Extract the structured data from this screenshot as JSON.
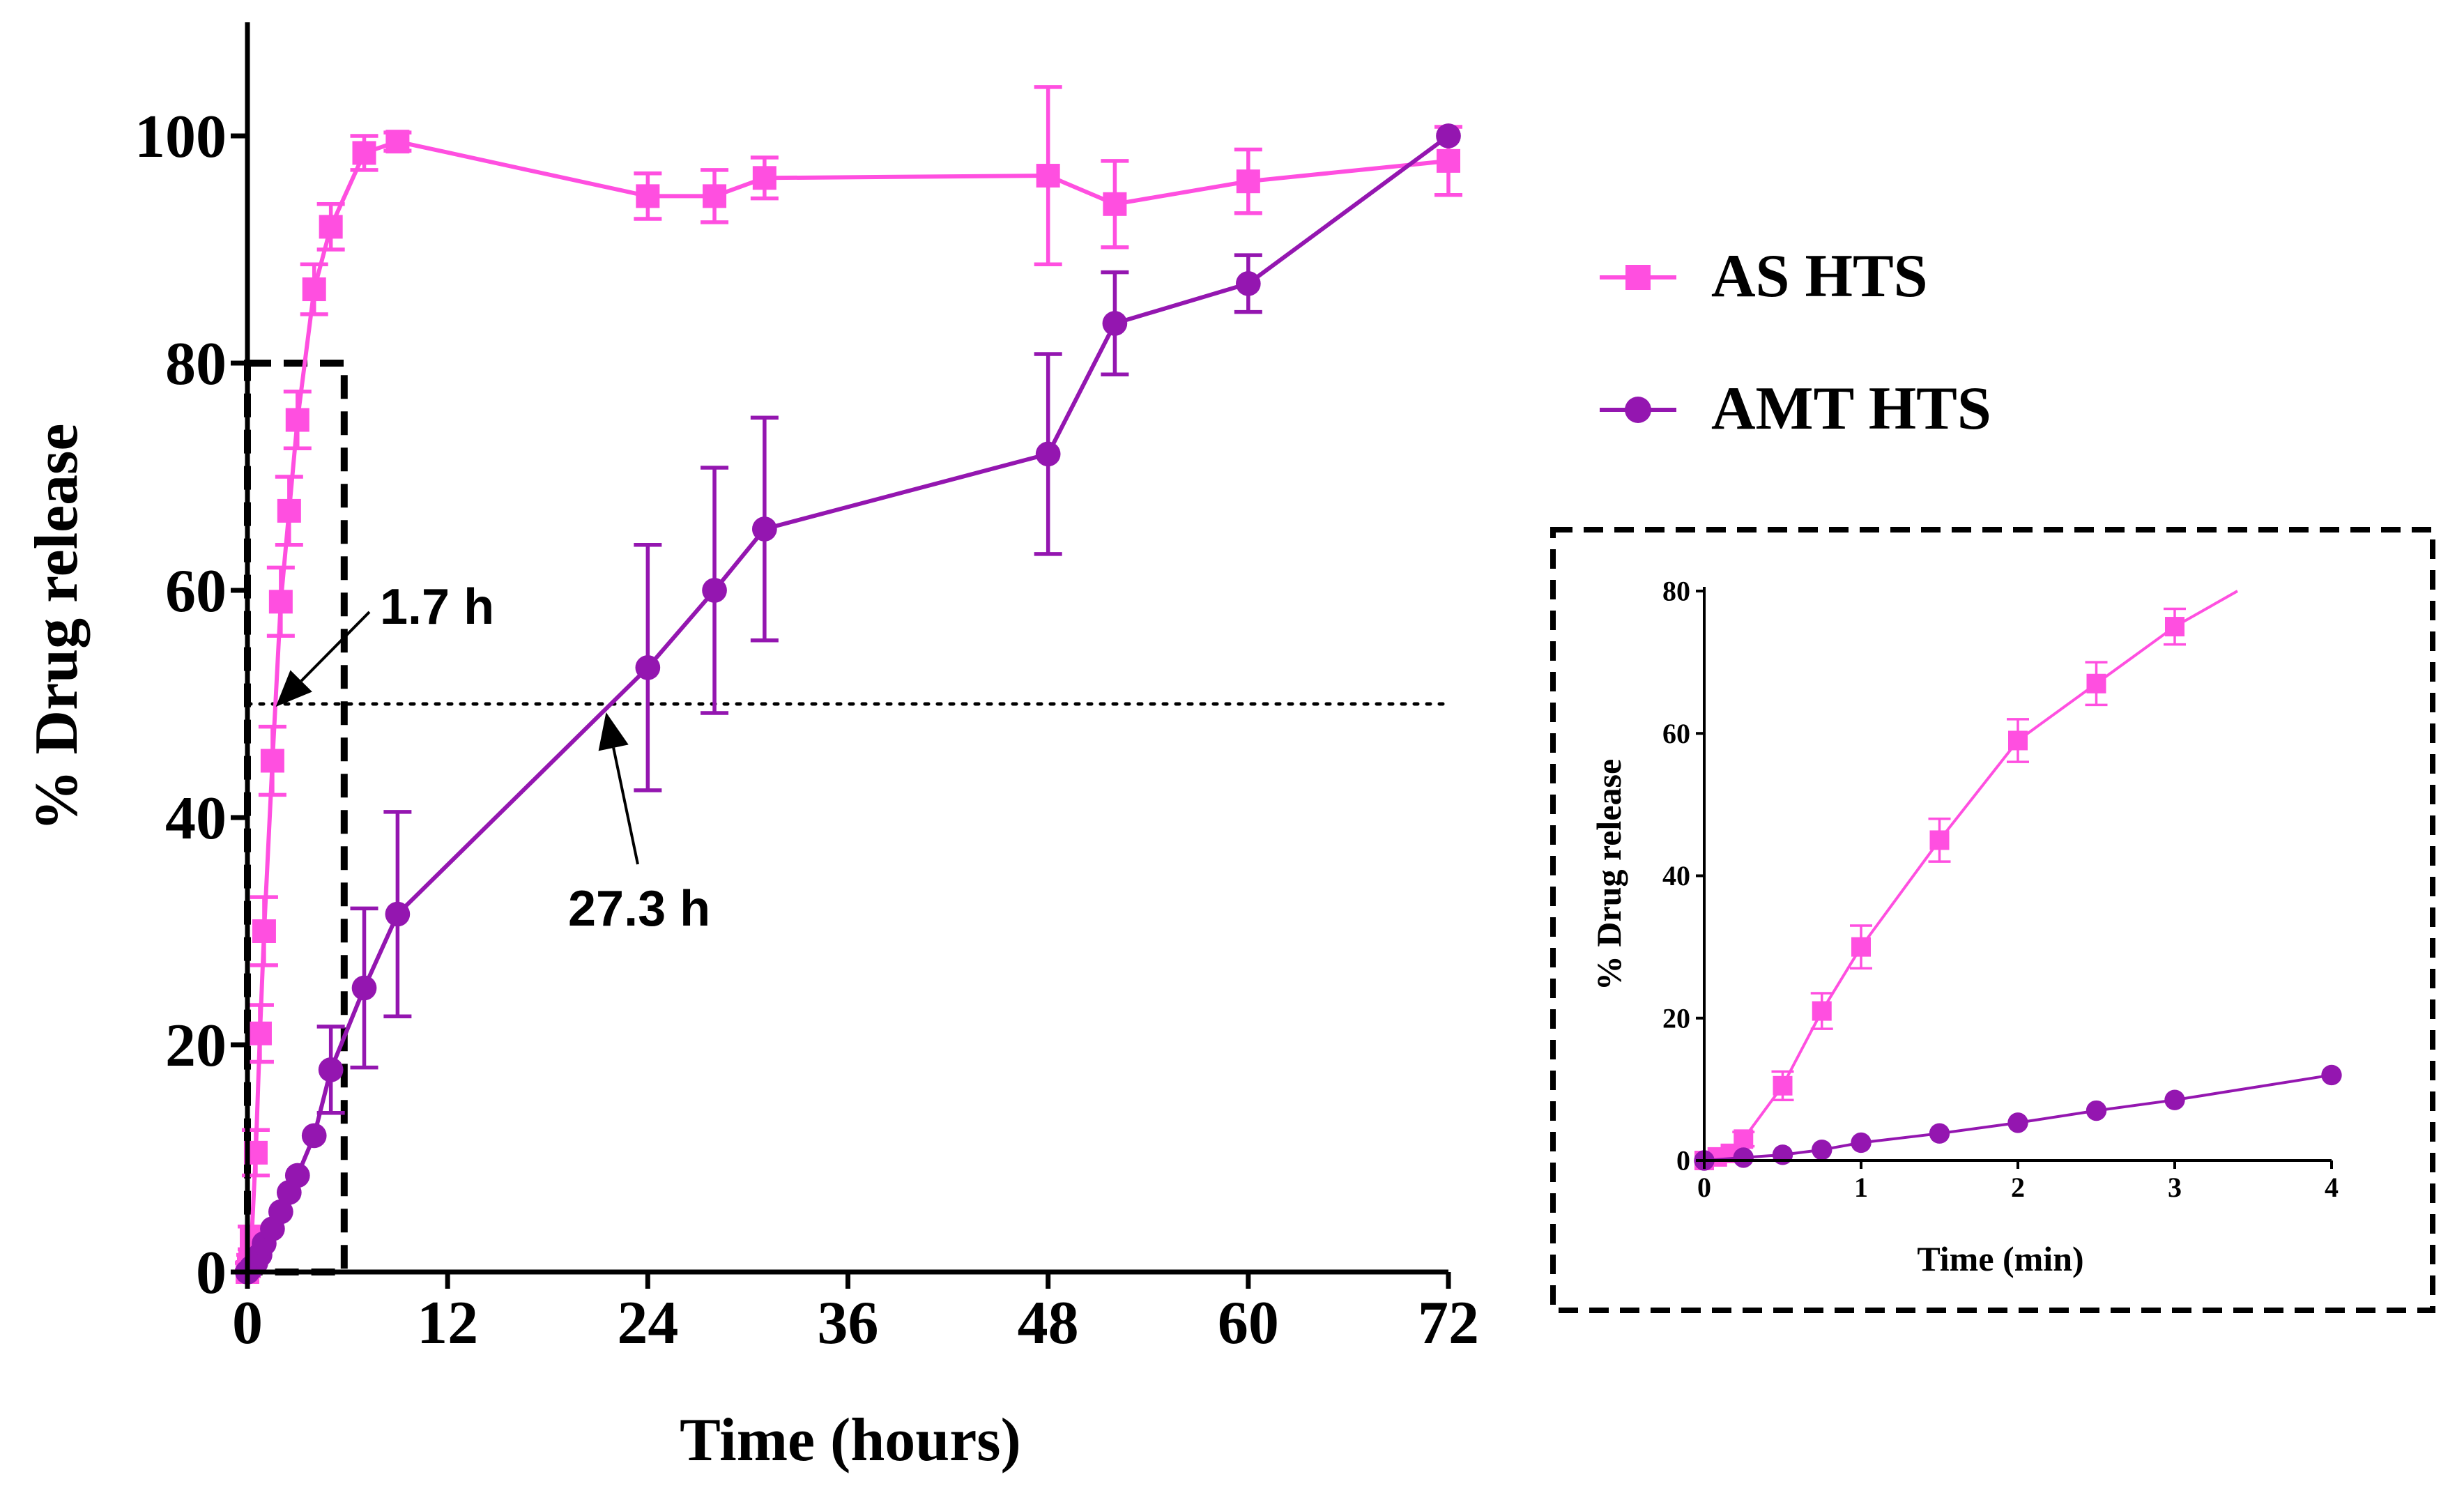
{
  "chart_data": [
    {
      "id": "main",
      "type": "line",
      "xlabel": "Time (hours)",
      "ylabel": "% Drug release",
      "xlim": [
        0,
        72
      ],
      "ylim": [
        0,
        110
      ],
      "xticks": [
        0,
        12,
        24,
        36,
        48,
        60,
        72
      ],
      "yticks": [
        0,
        20,
        40,
        60,
        80,
        100
      ],
      "reference_line": {
        "y": 50,
        "style": "dotted"
      },
      "annotations": [
        {
          "text": "1.7 h",
          "x": 1.7,
          "y": 50
        },
        {
          "text": "27.3 h",
          "x": 21.5,
          "y": 50
        }
      ],
      "zoom_box": {
        "x": [
          0,
          5.8
        ],
        "y": [
          0,
          80
        ]
      },
      "series": [
        {
          "name": "AS HTS",
          "color": "#ff4fe0",
          "marker": "square",
          "x": [
            0,
            0.0833,
            0.1667,
            0.25,
            0.5,
            0.75,
            1,
            1.5,
            2,
            2.5,
            3,
            4,
            5,
            7,
            9,
            24,
            28,
            31,
            48,
            52,
            60,
            72
          ],
          "y": [
            0,
            0.5,
            1,
            3,
            10.5,
            21,
            30,
            45,
            59,
            67,
            75,
            86.5,
            92,
            98.5,
            99.5,
            94.7,
            94.7,
            96.3,
            96.5,
            94,
            96,
            97.8
          ],
          "err": [
            0,
            0.3,
            0.5,
            1,
            2,
            2.5,
            3,
            3,
            3,
            3,
            2.5,
            2.2,
            2,
            1.5,
            0.8,
            2,
            2.3,
            1.8,
            7.8,
            3.8,
            2.8,
            3
          ]
        },
        {
          "name": "AMT HTS",
          "color": "#9416b0",
          "marker": "circle",
          "x": [
            0,
            0.25,
            0.5,
            0.75,
            1,
            1.5,
            2,
            2.5,
            3,
            4,
            5,
            7,
            9,
            24,
            28,
            31,
            48,
            52,
            60,
            72
          ],
          "y": [
            0,
            0.4,
            0.8,
            1.5,
            2.5,
            3.8,
            5.3,
            7,
            8.5,
            12,
            17.8,
            25,
            31.5,
            53.2,
            60,
            65.4,
            72,
            83.5,
            87,
            100
          ],
          "err": [
            0,
            0,
            0,
            0,
            0,
            0,
            0,
            0,
            0,
            0,
            3.8,
            7,
            9,
            10.8,
            10.8,
            9.8,
            8.8,
            4.5,
            2.5,
            0
          ]
        }
      ]
    },
    {
      "id": "inset",
      "type": "line",
      "xlabel": "Time (min)",
      "ylabel": "% Drug release",
      "xlim": [
        0,
        4
      ],
      "ylim": [
        0,
        80
      ],
      "xticks": [
        0,
        1,
        2,
        3,
        4
      ],
      "yticks": [
        0,
        20,
        40,
        60,
        80
      ],
      "series": [
        {
          "name": "AS HTS",
          "color": "#ff4fe0",
          "marker": "square",
          "x": [
            0,
            0.0833,
            0.1667,
            0.25,
            0.5,
            0.75,
            1,
            1.5,
            2,
            2.5,
            3,
            3.4
          ],
          "y": [
            0,
            0.5,
            1,
            3,
            10.5,
            21,
            30,
            45,
            59,
            67,
            75,
            80
          ],
          "err": [
            0,
            0.3,
            0.5,
            1,
            2,
            2.5,
            3,
            3,
            3,
            3,
            2.5,
            0
          ],
          "markers": [
            1,
            1,
            1,
            1,
            1,
            1,
            1,
            1,
            1,
            1,
            1,
            0
          ]
        },
        {
          "name": "AMT HTS",
          "color": "#9416b0",
          "marker": "circle",
          "x": [
            0,
            0.25,
            0.5,
            0.75,
            1,
            1.5,
            2,
            2.5,
            3,
            4
          ],
          "y": [
            0,
            0.4,
            0.8,
            1.5,
            2.5,
            3.8,
            5.3,
            7,
            8.5,
            12
          ],
          "err": [
            0,
            0,
            0,
            0,
            0,
            0,
            0,
            0,
            0,
            0
          ]
        }
      ]
    }
  ],
  "legend": [
    {
      "label": "AS HTS",
      "color": "#ff4fe0",
      "marker": "square"
    },
    {
      "label": "AMT HTS",
      "color": "#9416b0",
      "marker": "circle"
    }
  ]
}
